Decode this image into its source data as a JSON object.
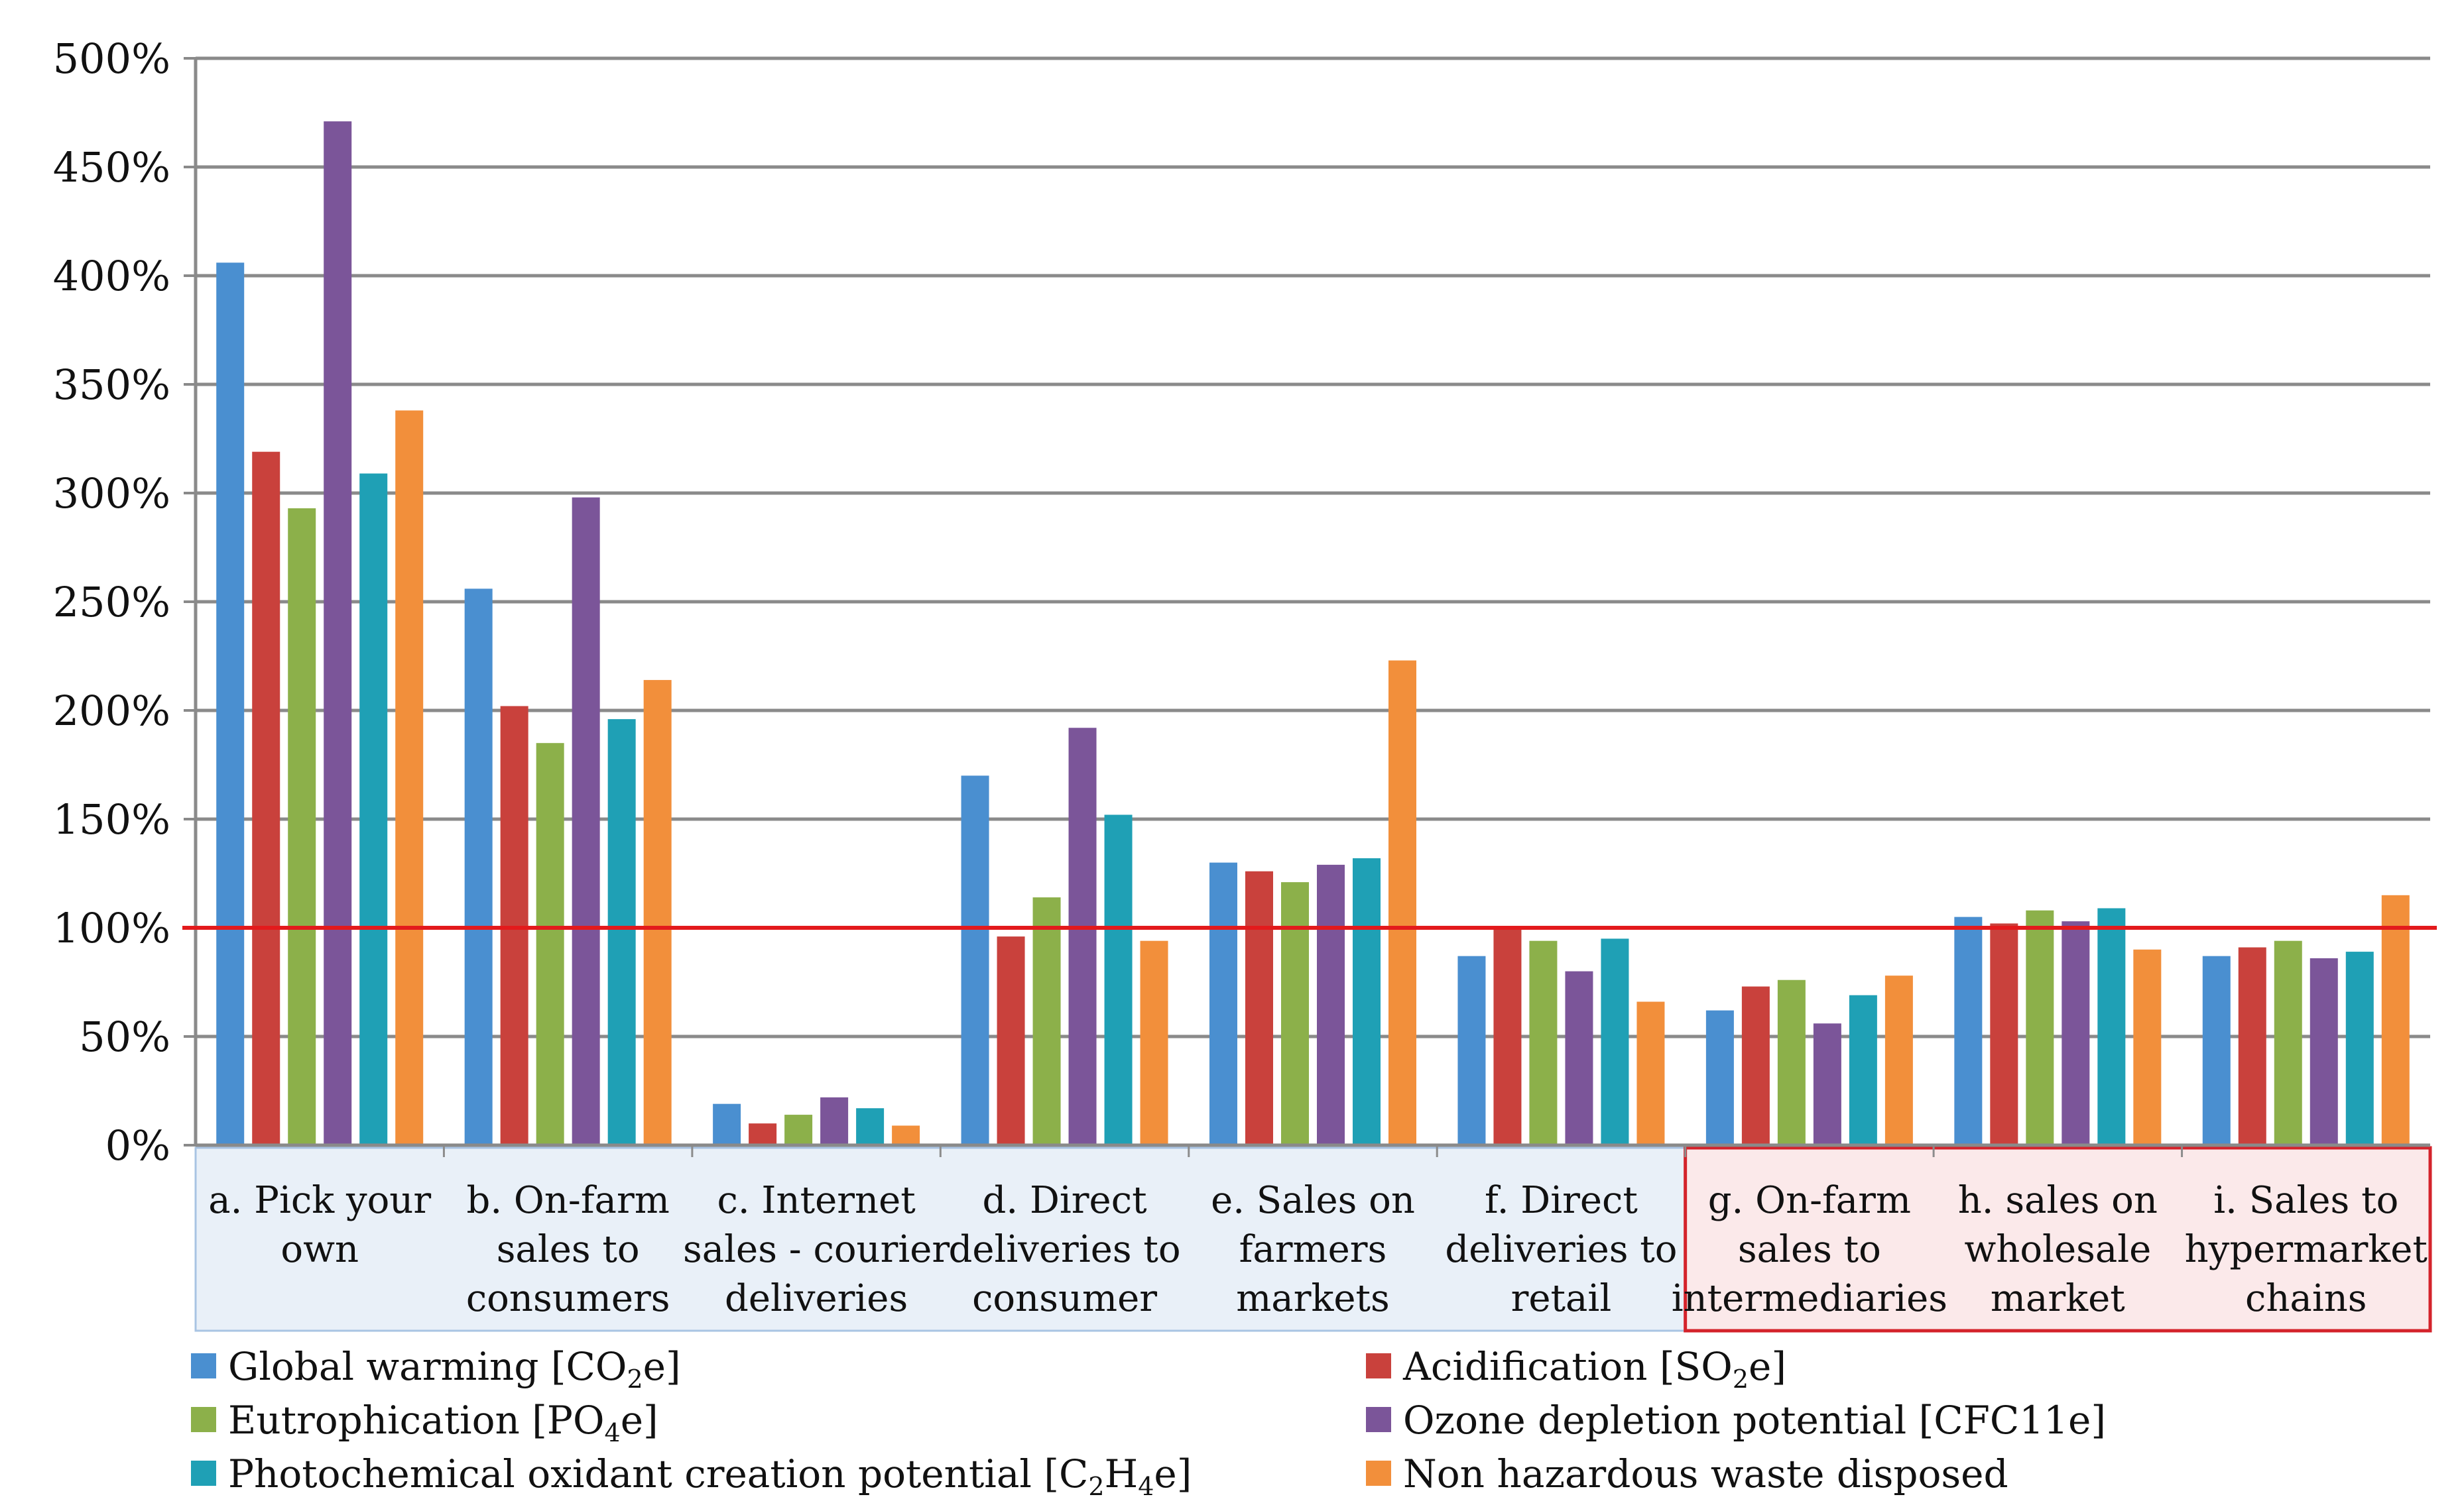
{
  "chart_data": {
    "type": "bar",
    "title": "",
    "xlabel": "",
    "ylabel": "",
    "ylim": [
      0,
      500
    ],
    "ytick_values": [
      0,
      50,
      100,
      150,
      200,
      250,
      300,
      350,
      400,
      450,
      500
    ],
    "ytick_labels": [
      "0%",
      "50%",
      "100%",
      "150%",
      "200%",
      "250%",
      "300%",
      "350%",
      "400%",
      "450%",
      "500%"
    ],
    "grid": true,
    "reference_line": {
      "value": 100,
      "color": "#e31a1c"
    },
    "categories": [
      [
        "a. Pick your",
        "own"
      ],
      [
        "b. On-farm",
        "sales to",
        "consumers"
      ],
      [
        "c. Internet",
        "sales - courier",
        "deliveries"
      ],
      [
        "d. Direct",
        "deliveries to",
        "consumer"
      ],
      [
        "e. Sales on",
        "farmers",
        "markets"
      ],
      [
        "f. Direct",
        "deliveries to",
        "retail"
      ],
      [
        "g. On-farm",
        "sales to",
        "intermediaries"
      ],
      [
        "h. sales on",
        "wholesale",
        "market"
      ],
      [
        "i. Sales to",
        "hypermarket",
        "chains"
      ]
    ],
    "category_groups": [
      {
        "start": 0,
        "end": 5,
        "fill": "#e9f0f8",
        "border": "#a9c4e3"
      },
      {
        "start": 6,
        "end": 8,
        "fill": "#fbe9ea",
        "border": "#d4232b"
      }
    ],
    "legend_position": "bottom",
    "series": [
      {
        "name": [
          "Global warming [CO",
          "2",
          "e]"
        ],
        "color": "#4a8fd0",
        "values": [
          406,
          256,
          19,
          170,
          130,
          87,
          62,
          105,
          87
        ]
      },
      {
        "name": [
          "Acidification [SO",
          "2",
          "e]"
        ],
        "color": "#c9413c",
        "values": [
          319,
          202,
          10,
          96,
          126,
          100,
          73,
          102,
          91
        ]
      },
      {
        "name": [
          "Eutrophication [PO",
          "4",
          "e]"
        ],
        "color": "#8cb04a",
        "values": [
          293,
          185,
          14,
          114,
          121,
          94,
          76,
          108,
          94
        ]
      },
      {
        "name": [
          "Ozone depletion potential [CFC11e]"
        ],
        "color": "#7b5599",
        "values": [
          471,
          298,
          22,
          192,
          129,
          80,
          56,
          103,
          86
        ]
      },
      {
        "name": [
          "Photochemical oxidant creation potential  [C",
          "2",
          "H",
          "4",
          "e]"
        ],
        "color": "#1fa0b5",
        "values": [
          309,
          196,
          17,
          152,
          132,
          95,
          69,
          109,
          89
        ]
      },
      {
        "name": [
          "Non hazardous waste disposed"
        ],
        "color": "#f28f3b",
        "values": [
          338,
          214,
          9,
          94,
          223,
          66,
          78,
          90,
          115
        ]
      }
    ]
  }
}
